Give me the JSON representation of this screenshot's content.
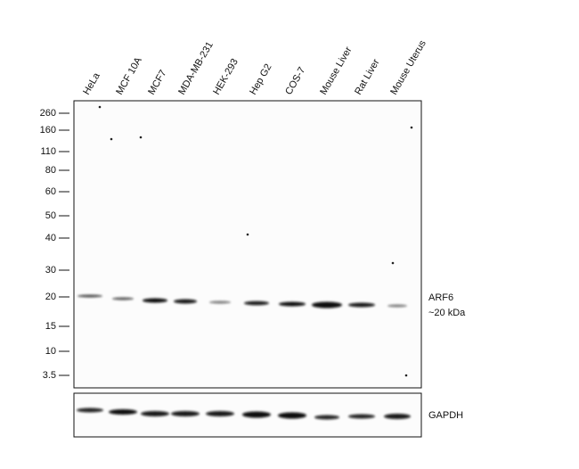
{
  "lanes": [
    "HeLa",
    "MCF 10A",
    "MCF7",
    "MDA-MB-231",
    "HEK-293",
    "Hep G2",
    "COS-7",
    "Mouse Liver",
    "Rat Liver",
    "Mouse Uterus"
  ],
  "markers": [
    "260",
    "160",
    "110",
    "80",
    "60",
    "50",
    "40",
    "30",
    "20",
    "15",
    "10",
    "3.5"
  ],
  "target_label": "ARF6",
  "target_size": "~20 kDa",
  "control_label": "GAPDH"
}
